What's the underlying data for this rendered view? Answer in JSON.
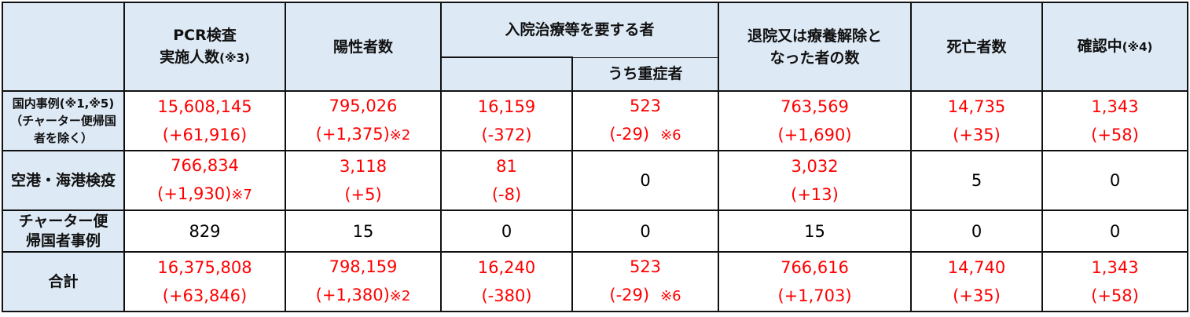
{
  "header": {
    "corner": "",
    "pcr": {
      "line1": "PCR検査",
      "line2": "実施人数",
      "note": "(※3)"
    },
    "positive": "陽性者数",
    "hospital": "入院治療等を要する者",
    "severe": "うち重症者",
    "discharged": {
      "line1": "退院又は療養解除と",
      "line2": "なった者の数"
    },
    "deaths": "死亡者数",
    "checking": {
      "label": "確認中",
      "note": "(※4)"
    }
  },
  "colors": {
    "red": "#ff0000",
    "header_bg": "#dde9f5"
  },
  "rows": [
    {
      "label": [
        "国内事例(※1,※5)",
        "（チャーター便帰国",
        "者を除く）"
      ],
      "cells": [
        {
          "value": "15,608,145",
          "change": "(+61,916)",
          "note": "",
          "red": true
        },
        {
          "value": "795,026",
          "change": "(+1,375)",
          "note": "※2",
          "red": true
        },
        {
          "value": "16,159",
          "change": "(-372)",
          "note": "",
          "red": true
        },
        {
          "value": "523",
          "change": "(-29)",
          "note": "※6",
          "red": true
        },
        {
          "value": "763,569",
          "change": "(+1,690)",
          "note": "",
          "red": true
        },
        {
          "value": "14,735",
          "change": "(+35)",
          "note": "",
          "red": true
        },
        {
          "value": "1,343",
          "change": "(+58)",
          "note": "",
          "red": true
        }
      ]
    },
    {
      "label": [
        "空港・海港検疫"
      ],
      "cells": [
        {
          "value": "766,834",
          "change": "(+1,930)",
          "note": "※7",
          "red": true
        },
        {
          "value": "3,118",
          "change": "(+5)",
          "note": "",
          "red": true
        },
        {
          "value": "81",
          "change": "(-8)",
          "note": "",
          "red": true
        },
        {
          "value": "0",
          "change": "",
          "note": "",
          "red": false
        },
        {
          "value": "3,032",
          "change": "(+13)",
          "note": "",
          "red": true
        },
        {
          "value": "5",
          "change": "",
          "note": "",
          "red": false
        },
        {
          "value": "0",
          "change": "",
          "note": "",
          "red": false
        }
      ]
    },
    {
      "label": [
        "チャーター便",
        "帰国者事例"
      ],
      "cells": [
        {
          "value": "829",
          "change": "",
          "note": "",
          "red": false
        },
        {
          "value": "15",
          "change": "",
          "note": "",
          "red": false
        },
        {
          "value": "0",
          "change": "",
          "note": "",
          "red": false
        },
        {
          "value": "0",
          "change": "",
          "note": "",
          "red": false
        },
        {
          "value": "15",
          "change": "",
          "note": "",
          "red": false
        },
        {
          "value": "0",
          "change": "",
          "note": "",
          "red": false
        },
        {
          "value": "0",
          "change": "",
          "note": "",
          "red": false
        }
      ]
    },
    {
      "label": [
        "合計"
      ],
      "cells": [
        {
          "value": "16,375,808",
          "change": "(+63,846)",
          "note": "",
          "red": true
        },
        {
          "value": "798,159",
          "change": "(+1,380)",
          "note": "※2",
          "red": true
        },
        {
          "value": "16,240",
          "change": "(-380)",
          "note": "",
          "red": true
        },
        {
          "value": "523",
          "change": "(-29)",
          "note": "※6",
          "red": true
        },
        {
          "value": "766,616",
          "change": "(+1,703)",
          "note": "",
          "red": true
        },
        {
          "value": "14,740",
          "change": "(+35)",
          "note": "",
          "red": true
        },
        {
          "value": "1,343",
          "change": "(+58)",
          "note": "",
          "red": true
        }
      ]
    }
  ]
}
